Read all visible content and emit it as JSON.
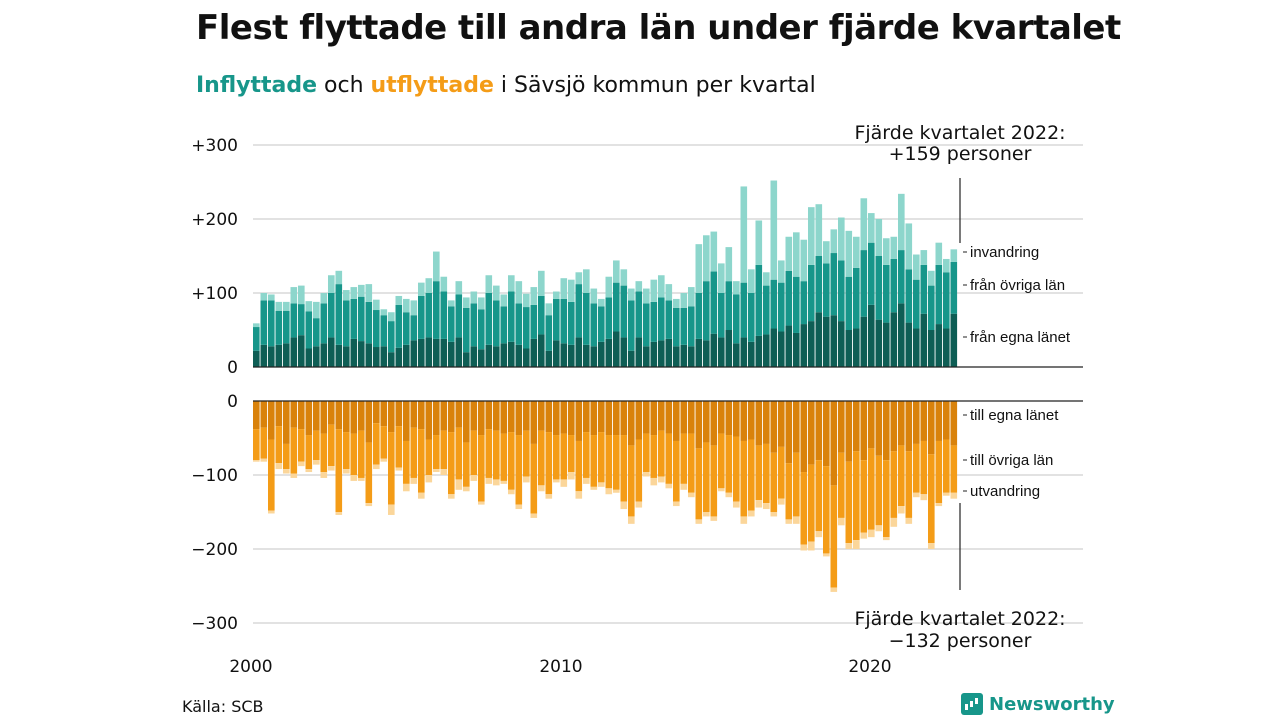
{
  "title": "Flest flyttade till andra län under fjärde kvartalet",
  "subtitle": {
    "part1": "Inflyttade",
    "part2": " och ",
    "part3": "utflyttade",
    "part4": " i Sävsjö kommun per kvartal"
  },
  "source": "Källa: SCB",
  "logo_text": "Newsworthy",
  "colors": {
    "in_local": "#0e5e55",
    "in_other": "#17968a",
    "in_imm": "#8dd6cc",
    "out_local": "#d9820b",
    "out_other": "#f49c17",
    "out_emig": "#fbd69a",
    "grid": "#d9d9d9",
    "axis": "#222222"
  },
  "chart_data": {
    "type": "bar",
    "x_ticks": [
      "2000",
      "2010",
      "2020"
    ],
    "y_ticks_top": [
      "+300",
      "+200",
      "+100",
      "0"
    ],
    "y_ticks_top_values": [
      300,
      200,
      100,
      0
    ],
    "y_ticks_bottom": [
      "0",
      "−100",
      "−200",
      "−300"
    ],
    "y_ticks_bottom_values": [
      0,
      -100,
      -200,
      -300
    ],
    "top_annotation": [
      "Fjärde kvartalet 2022:",
      "+159 personer"
    ],
    "bottom_annotation": [
      "Fjärde kvartalet 2022:",
      "−132 personer"
    ],
    "in_labels": [
      "invandring",
      "från övriga län",
      "från egna länet"
    ],
    "out_labels": [
      "till egna länet",
      "till övriga län",
      "utvandring"
    ],
    "quarters_start": "2000 Q1",
    "inflow": {
      "from_own_county": [
        22,
        30,
        28,
        30,
        32,
        40,
        43,
        25,
        28,
        32,
        40,
        30,
        28,
        38,
        35,
        32,
        27,
        28,
        20,
        26,
        30,
        36,
        38,
        40,
        38,
        38,
        34,
        40,
        20,
        28,
        24,
        30,
        28,
        32,
        34,
        30,
        25,
        38,
        44,
        22,
        36,
        32,
        30,
        40,
        30,
        28,
        34,
        38,
        48,
        40,
        22,
        40,
        28,
        34,
        36,
        38,
        28,
        30,
        28,
        38,
        36,
        45,
        40,
        50,
        32,
        40,
        34,
        42,
        44,
        52,
        48,
        56,
        46,
        58,
        62,
        74,
        68,
        70,
        62,
        50,
        52,
        68,
        84,
        64,
        60,
        74,
        86,
        60,
        52,
        72,
        50,
        58,
        52,
        72
      ],
      "from_other_counties": [
        32,
        60,
        62,
        46,
        44,
        46,
        42,
        50,
        38,
        54,
        60,
        82,
        62,
        54,
        60,
        56,
        50,
        42,
        42,
        58,
        44,
        34,
        58,
        60,
        78,
        64,
        48,
        58,
        60,
        58,
        54,
        70,
        62,
        50,
        68,
        56,
        56,
        46,
        52,
        48,
        56,
        60,
        58,
        72,
        70,
        58,
        48,
        56,
        66,
        70,
        68,
        62,
        58,
        54,
        58,
        52,
        52,
        50,
        54,
        62,
        80,
        84,
        60,
        66,
        66,
        74,
        66,
        96,
        66,
        66,
        66,
        74,
        76,
        58,
        76,
        76,
        72,
        84,
        82,
        72,
        82,
        90,
        84,
        86,
        78,
        72,
        72,
        72,
        66,
        66,
        60,
        80,
        76,
        70
      ],
      "immigration": [
        5,
        10,
        8,
        12,
        12,
        22,
        25,
        14,
        22,
        14,
        24,
        18,
        14,
        16,
        16,
        24,
        14,
        8,
        12,
        12,
        18,
        20,
        18,
        20,
        40,
        20,
        8,
        18,
        14,
        16,
        16,
        24,
        20,
        16,
        22,
        30,
        18,
        24,
        34,
        16,
        10,
        28,
        30,
        16,
        32,
        20,
        10,
        28,
        30,
        22,
        16,
        14,
        20,
        30,
        30,
        22,
        12,
        20,
        26,
        66,
        62,
        54,
        40,
        46,
        18,
        130,
        32,
        60,
        18,
        134,
        30,
        46,
        60,
        56,
        78,
        70,
        30,
        32,
        58,
        62,
        42,
        70,
        40,
        50,
        36,
        30,
        76,
        62,
        34,
        20,
        20,
        30,
        18,
        17
      ]
    },
    "outflow": {
      "to_own_county": [
        38,
        36,
        52,
        34,
        58,
        36,
        38,
        46,
        40,
        44,
        32,
        38,
        42,
        44,
        40,
        56,
        30,
        34,
        42,
        34,
        54,
        36,
        38,
        52,
        46,
        40,
        42,
        36,
        56,
        40,
        46,
        38,
        40,
        44,
        42,
        46,
        40,
        58,
        40,
        42,
        46,
        44,
        46,
        54,
        42,
        46,
        42,
        46,
        46,
        46,
        60,
        52,
        44,
        46,
        40,
        44,
        54,
        44,
        44,
        64,
        56,
        60,
        44,
        46,
        48,
        54,
        52,
        60,
        58,
        70,
        62,
        84,
        70,
        96,
        86,
        80,
        88,
        114,
        70,
        82,
        68,
        80,
        64,
        74,
        80,
        68,
        60,
        68,
        58,
        54,
        72,
        54,
        52,
        60
      ],
      "to_other_counties": [
        42,
        42,
        96,
        50,
        34,
        62,
        44,
        46,
        40,
        52,
        56,
        112,
        50,
        56,
        64,
        82,
        56,
        44,
        98,
        56,
        58,
        68,
        86,
        48,
        46,
        52,
        84,
        70,
        60,
        60,
        90,
        66,
        66,
        64,
        78,
        94,
        62,
        94,
        74,
        84,
        60,
        62,
        50,
        68,
        62,
        70,
        68,
        72,
        74,
        90,
        96,
        84,
        52,
        58,
        62,
        68,
        82,
        68,
        80,
        96,
        94,
        96,
        74,
        78,
        88,
        102,
        96,
        74,
        80,
        80,
        70,
        76,
        86,
        98,
        104,
        96,
        118,
        138,
        88,
        110,
        120,
        98,
        110,
        94,
        104,
        90,
        82,
        90,
        66,
        72,
        120,
        84,
        72,
        64
      ],
      "emigration": [
        2,
        4,
        4,
        8,
        6,
        6,
        6,
        4,
        6,
        8,
        6,
        4,
        6,
        8,
        4,
        4,
        6,
        4,
        14,
        4,
        10,
        8,
        8,
        10,
        4,
        8,
        6,
        14,
        6,
        8,
        4,
        8,
        8,
        4,
        6,
        6,
        8,
        6,
        8,
        6,
        4,
        10,
        10,
        10,
        8,
        4,
        6,
        8,
        4,
        10,
        10,
        8,
        6,
        10,
        8,
        6,
        6,
        8,
        6,
        6,
        6,
        6,
        4,
        6,
        8,
        10,
        8,
        10,
        8,
        6,
        8,
        6,
        10,
        8,
        12,
        8,
        4,
        6,
        10,
        8,
        12,
        8,
        10,
        8,
        4,
        12,
        10,
        8,
        6,
        8,
        8,
        4,
        4,
        8
      ]
    }
  }
}
